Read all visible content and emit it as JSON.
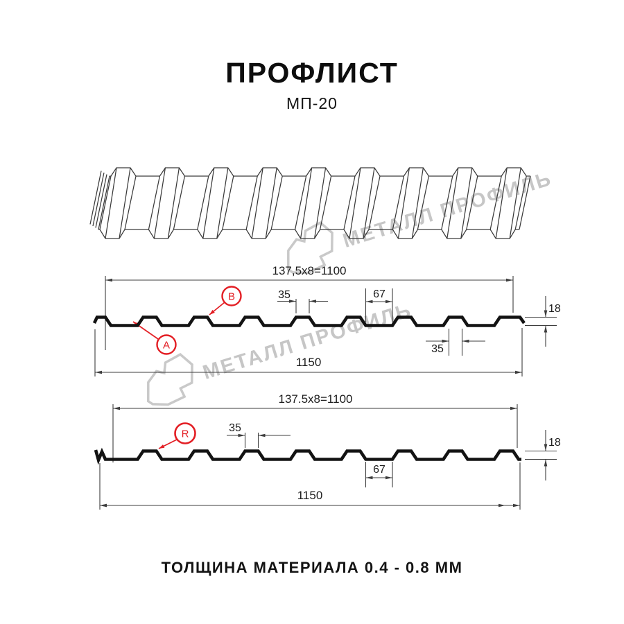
{
  "header": {
    "title": "ПРОФЛИСТ",
    "subtitle": "МП-20"
  },
  "watermark": {
    "text": "МЕТАЛЛ ПРОФИЛЬ"
  },
  "drawing1": {
    "module_dim": "137,5x8=1100",
    "rib_top": "35",
    "valley": "67",
    "height": "18",
    "rib_bottom": "35",
    "total": "1150",
    "markers": {
      "a": "A",
      "b": "B"
    }
  },
  "drawing2": {
    "module_dim": "137.5x8=1100",
    "rib_top": "35",
    "valley": "67",
    "height": "18",
    "total": "1150",
    "markers": {
      "r": "R"
    }
  },
  "footer": {
    "text": "ТОЛЩИНА МАТЕРИАЛА 0.4 - 0.8 ММ"
  },
  "colors": {
    "accent_red": "#e31e24",
    "line": "#3d3d3d",
    "profile": "#131313",
    "watermark": "#c6c6c6"
  }
}
